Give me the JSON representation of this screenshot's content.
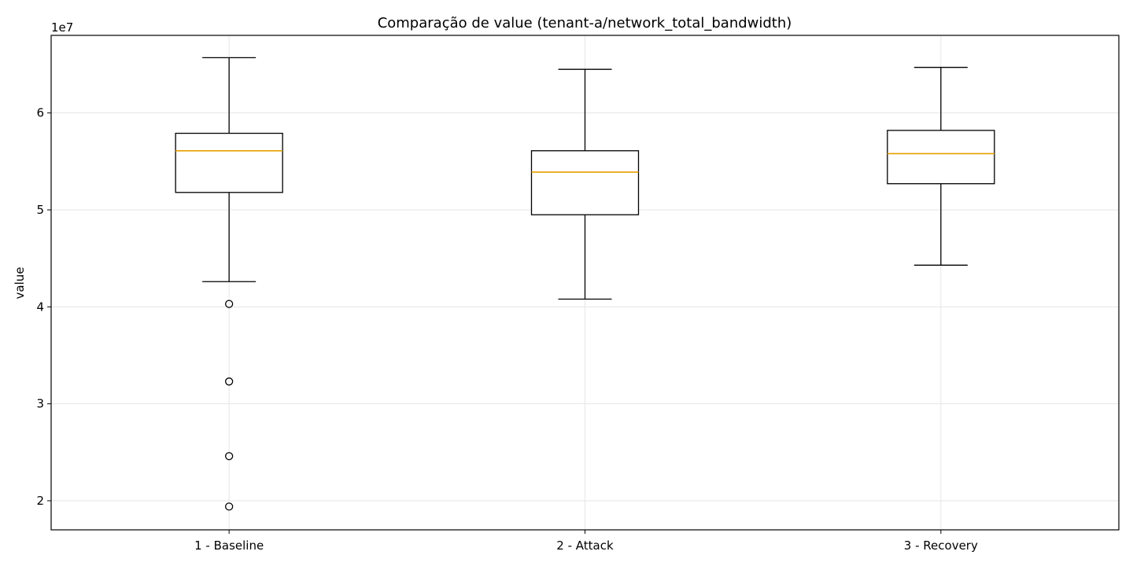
{
  "chart_data": {
    "type": "box",
    "title": "Comparação de value (tenant-a/network_total_bandwidth)",
    "ylabel": "value",
    "xlabel": "",
    "y_scale_label": "1e7",
    "ylim": [
      1.7,
      6.8
    ],
    "y_ticks": [
      2,
      3,
      4,
      5,
      6
    ],
    "y_tick_labels": [
      "2",
      "3",
      "4",
      "5",
      "6"
    ],
    "grid": true,
    "colors": {
      "median": "#E69F00",
      "box": "#000000",
      "grid": "#e6e6e6"
    },
    "categories": [
      "1 - Baseline",
      "2 - Attack",
      "3 - Recovery"
    ],
    "boxes": [
      {
        "whisker_low": 4.26,
        "q1": 5.18,
        "median": 5.61,
        "q3": 5.79,
        "whisker_high": 6.57,
        "outliers": [
          4.03,
          3.23,
          2.46,
          1.94
        ]
      },
      {
        "whisker_low": 4.08,
        "q1": 4.95,
        "median": 5.39,
        "q3": 5.61,
        "whisker_high": 6.45,
        "outliers": []
      },
      {
        "whisker_low": 4.43,
        "q1": 5.27,
        "median": 5.58,
        "q3": 5.82,
        "whisker_high": 6.47,
        "outliers": []
      }
    ]
  }
}
